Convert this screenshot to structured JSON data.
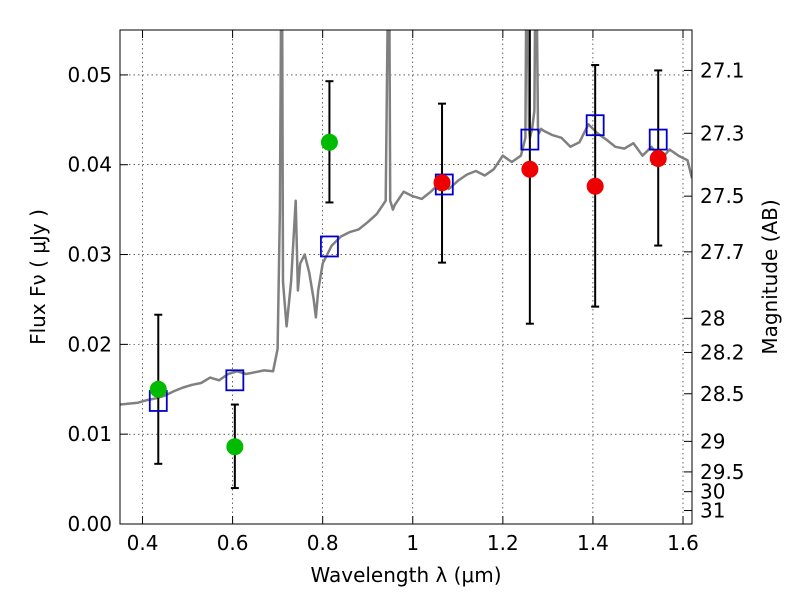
{
  "chart_data": {
    "type": "scatter",
    "title": "",
    "xlabel": "Wavelength  λ (μm)",
    "ylabel": "Flux  Fν  ( μJy )",
    "ylabel_right": "Magnitude (AB)",
    "xlim": [
      0.35,
      1.62
    ],
    "ylim": [
      0.0,
      0.055
    ],
    "grid": true,
    "x_ticks": [
      0.4,
      0.6,
      0.8,
      1.0,
      1.2,
      1.4,
      1.6
    ],
    "x_tick_labels": [
      "0.4",
      "0.6",
      "0.8",
      "1",
      "1.2",
      "1.4",
      "1.6"
    ],
    "y_ticks": [
      0.0,
      0.01,
      0.02,
      0.03,
      0.04,
      0.05
    ],
    "y_tick_labels": [
      "0.00",
      "0.01",
      "0.02",
      "0.03",
      "0.04",
      "0.05"
    ],
    "right_ticks": [
      {
        "label": "27.1",
        "flux": 0.0505
      },
      {
        "label": "27.3",
        "flux": 0.0435
      },
      {
        "label": "27.5",
        "flux": 0.0365
      },
      {
        "label": "27.7",
        "flux": 0.0303
      },
      {
        "label": "28",
        "flux": 0.0229
      },
      {
        "label": "28.2",
        "flux": 0.0191
      },
      {
        "label": "28.5",
        "flux": 0.0145
      },
      {
        "label": "29",
        "flux": 0.0092
      },
      {
        "label": "29.5",
        "flux": 0.0058
      },
      {
        "label": "30",
        "flux": 0.0036
      },
      {
        "label": "31",
        "flux": 0.0015
      }
    ],
    "series": [
      {
        "kind": "model_spectrum",
        "color": "#808080",
        "x": [
          0.35,
          0.37,
          0.39,
          0.41,
          0.43,
          0.45,
          0.47,
          0.49,
          0.51,
          0.53,
          0.55,
          0.57,
          0.59,
          0.61,
          0.63,
          0.65,
          0.67,
          0.69,
          0.7,
          0.705,
          0.708,
          0.71,
          0.712,
          0.715,
          0.72,
          0.73,
          0.74,
          0.745,
          0.75,
          0.76,
          0.77,
          0.78,
          0.785,
          0.79,
          0.8,
          0.81,
          0.82,
          0.83,
          0.84,
          0.86,
          0.88,
          0.9,
          0.92,
          0.94,
          0.945,
          0.948,
          0.95,
          0.953,
          0.956,
          0.96,
          0.98,
          1.0,
          1.02,
          1.04,
          1.06,
          1.08,
          1.1,
          1.12,
          1.14,
          1.16,
          1.18,
          1.2,
          1.22,
          1.24,
          1.25,
          1.252,
          1.255,
          1.258,
          1.26,
          1.265,
          1.27,
          1.272,
          1.275,
          1.278,
          1.28,
          1.285,
          1.29,
          1.31,
          1.33,
          1.35,
          1.37,
          1.39,
          1.41,
          1.43,
          1.45,
          1.47,
          1.49,
          1.51,
          1.53,
          1.55,
          1.57,
          1.59,
          1.61,
          1.62
        ],
        "y": [
          0.0133,
          0.0134,
          0.0135,
          0.0138,
          0.014,
          0.0143,
          0.0148,
          0.0152,
          0.0155,
          0.0157,
          0.0163,
          0.016,
          0.0167,
          0.017,
          0.0167,
          0.0169,
          0.0171,
          0.017,
          0.0195,
          0.035,
          0.06,
          0.06,
          0.027,
          0.025,
          0.022,
          0.027,
          0.036,
          0.026,
          0.029,
          0.03,
          0.028,
          0.025,
          0.023,
          0.026,
          0.029,
          0.03,
          0.031,
          0.0315,
          0.032,
          0.0325,
          0.0328,
          0.0336,
          0.0345,
          0.036,
          0.06,
          0.06,
          0.036,
          0.0355,
          0.035,
          0.0355,
          0.037,
          0.0365,
          0.0362,
          0.037,
          0.038,
          0.0373,
          0.0382,
          0.0389,
          0.0393,
          0.0388,
          0.0395,
          0.041,
          0.0403,
          0.041,
          0.043,
          0.06,
          0.06,
          0.044,
          0.043,
          0.044,
          0.046,
          0.06,
          0.06,
          0.044,
          0.0435,
          0.044,
          0.0438,
          0.0433,
          0.043,
          0.042,
          0.0425,
          0.0445,
          0.0435,
          0.0428,
          0.042,
          0.0418,
          0.0424,
          0.041,
          0.042,
          0.0405,
          0.0417,
          0.041,
          0.0405,
          0.0385
        ]
      },
      {
        "kind": "model_photometry",
        "marker": "open-square",
        "color": "#0000cc",
        "x": [
          0.435,
          0.605,
          0.815,
          1.07,
          1.26,
          1.405,
          1.545
        ],
        "y": [
          0.0137,
          0.016,
          0.0309,
          0.0378,
          0.0428,
          0.0444,
          0.0428
        ]
      },
      {
        "kind": "observed_photometry",
        "marker": "filled-circle",
        "color": "#00bb00",
        "x": [
          0.435,
          0.605,
          0.815
        ],
        "y": [
          0.015,
          0.0086,
          0.0425
        ],
        "yerr_low": [
          0.0067,
          0.004,
          0.0358
        ],
        "yerr_high": [
          0.0233,
          0.0133,
          0.0493
        ]
      },
      {
        "kind": "observed_photometry",
        "marker": "filled-circle",
        "color": "#ee0000",
        "x": [
          1.065,
          1.26,
          1.405,
          1.545
        ],
        "y": [
          0.038,
          0.0395,
          0.0376,
          0.0407
        ],
        "yerr_low": [
          0.0291,
          0.0223,
          0.0242,
          0.031
        ],
        "yerr_high": [
          0.0468,
          0.06,
          0.0511,
          0.0505
        ]
      }
    ]
  }
}
